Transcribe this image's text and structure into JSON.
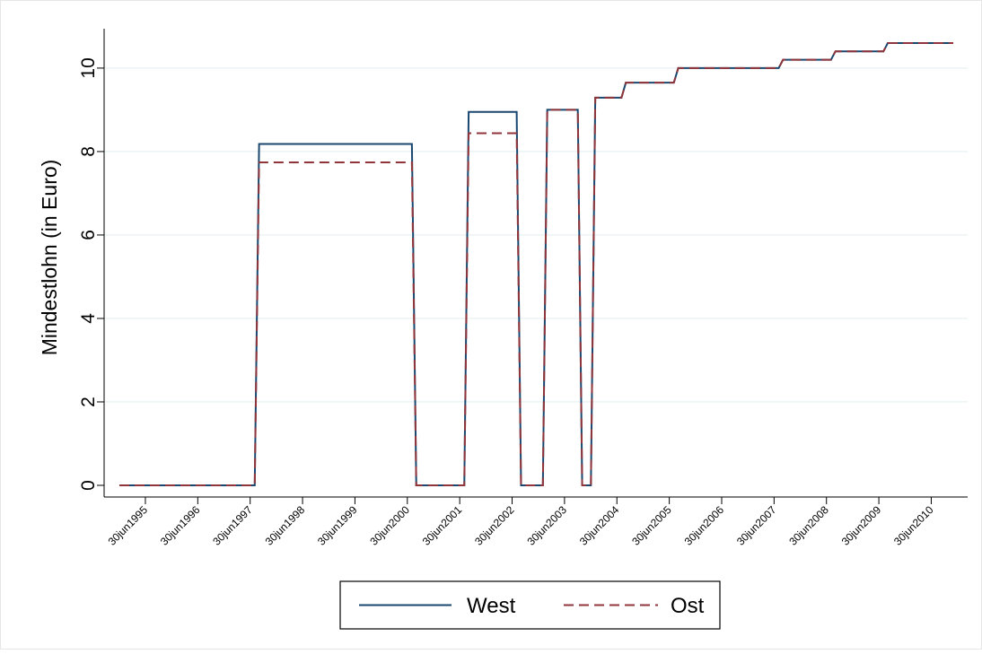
{
  "chart_data": {
    "type": "line",
    "ylabel": "Mindestlohn (in Euro)",
    "xlabel": "",
    "ylim": [
      0,
      10.6
    ],
    "yticks": [
      0,
      2,
      4,
      6,
      8,
      10
    ],
    "xlim": [
      "1995-01-01",
      "2010-12-01"
    ],
    "xticks": [
      "30jun1995",
      "30jun1996",
      "30jun1997",
      "30jun1998",
      "30jun1999",
      "30jun2000",
      "30jun2001",
      "30jun2002",
      "30jun2003",
      "30jun2004",
      "30jun2005",
      "30jun2006",
      "30jun2007",
      "30jun2008",
      "30jun2009",
      "30jun2010"
    ],
    "grid": true,
    "legend": "bottom",
    "series": [
      {
        "name": "West",
        "color": "#1a476f",
        "dash": "solid",
        "points": [
          [
            "1995-01-01",
            0
          ],
          [
            "1997-08-01",
            0
          ],
          [
            "1997-09-01",
            8.18
          ],
          [
            "2000-08-01",
            8.18
          ],
          [
            "2000-09-01",
            0
          ],
          [
            "2001-08-01",
            0
          ],
          [
            "2001-09-01",
            8.95
          ],
          [
            "2002-08-01",
            8.95
          ],
          [
            "2002-09-01",
            0
          ],
          [
            "2003-02-01",
            0
          ],
          [
            "2003-03-01",
            9.0
          ],
          [
            "2003-10-01",
            9.0
          ],
          [
            "2003-11-01",
            0
          ],
          [
            "2004-01-01",
            0
          ],
          [
            "2004-02-01",
            9.29
          ],
          [
            "2004-08-01",
            9.29
          ],
          [
            "2004-09-01",
            9.65
          ],
          [
            "2005-08-01",
            9.65
          ],
          [
            "2005-09-01",
            10.0
          ],
          [
            "2007-08-01",
            10.0
          ],
          [
            "2007-09-01",
            10.2
          ],
          [
            "2008-08-01",
            10.2
          ],
          [
            "2008-09-01",
            10.4
          ],
          [
            "2009-08-01",
            10.4
          ],
          [
            "2009-09-01",
            10.6
          ],
          [
            "2010-12-01",
            10.6
          ]
        ]
      },
      {
        "name": "Ost",
        "color": "#90353b",
        "dash": "dashed",
        "points": [
          [
            "1995-01-01",
            0
          ],
          [
            "1997-08-01",
            0
          ],
          [
            "1997-09-01",
            7.74
          ],
          [
            "2000-08-01",
            7.74
          ],
          [
            "2000-09-01",
            0
          ],
          [
            "2001-08-01",
            0
          ],
          [
            "2001-09-01",
            8.44
          ],
          [
            "2002-08-01",
            8.44
          ],
          [
            "2002-09-01",
            0
          ],
          [
            "2003-02-01",
            0
          ],
          [
            "2003-03-01",
            9.0
          ],
          [
            "2003-10-01",
            9.0
          ],
          [
            "2003-11-01",
            0
          ],
          [
            "2004-01-01",
            0
          ],
          [
            "2004-02-01",
            9.29
          ],
          [
            "2004-08-01",
            9.29
          ],
          [
            "2004-09-01",
            9.65
          ],
          [
            "2005-08-01",
            9.65
          ],
          [
            "2005-09-01",
            10.0
          ],
          [
            "2007-08-01",
            10.0
          ],
          [
            "2007-09-01",
            10.2
          ],
          [
            "2008-08-01",
            10.2
          ],
          [
            "2008-09-01",
            10.4
          ],
          [
            "2009-08-01",
            10.4
          ],
          [
            "2009-09-01",
            10.6
          ],
          [
            "2010-12-01",
            10.6
          ]
        ]
      }
    ]
  }
}
